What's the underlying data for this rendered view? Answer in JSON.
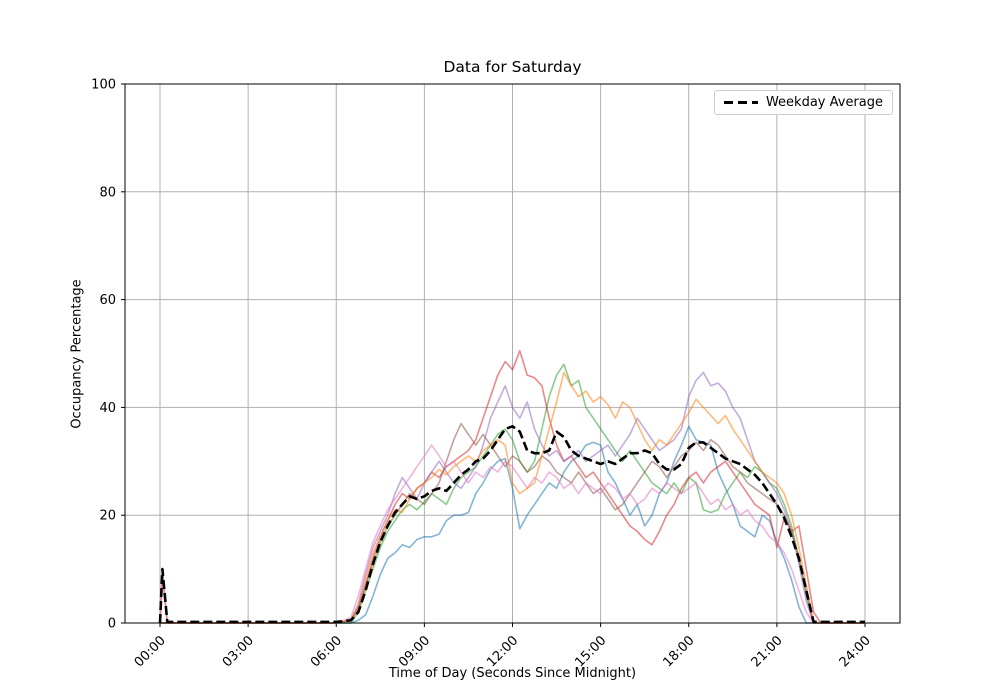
{
  "chart_data": {
    "type": "line",
    "title": "Data for Saturday",
    "xlabel": "Time of Day (Seconds Since Midnight)",
    "ylabel": "Occupancy Percentage",
    "ylim": [
      0,
      100
    ],
    "yticks": [
      0,
      20,
      40,
      60,
      80,
      100
    ],
    "xtick_hours": [
      0,
      3,
      6,
      9,
      12,
      15,
      18,
      21,
      24
    ],
    "xtick_labels": [
      "00:00",
      "03:00",
      "06:00",
      "09:00",
      "12:00",
      "15:00",
      "18:00",
      "21:00",
      "24:00"
    ],
    "grid": true,
    "legend": {
      "label": "Weekday Average",
      "position": "upper right"
    },
    "colors": {
      "grid": "#b0b0b0",
      "axis": "#000000",
      "average": "#000000"
    },
    "x_hours": [
      0,
      0.083,
      0.25,
      1,
      2,
      3,
      4,
      5,
      6,
      6.5,
      6.75,
      7,
      7.25,
      7.5,
      7.75,
      8,
      8.25,
      8.5,
      8.75,
      9,
      9.25,
      9.5,
      9.75,
      10,
      10.25,
      10.5,
      10.75,
      11,
      11.25,
      11.5,
      11.75,
      12,
      12.25,
      12.5,
      12.75,
      13,
      13.25,
      13.5,
      13.75,
      14,
      14.25,
      14.5,
      14.75,
      15,
      15.25,
      15.5,
      15.75,
      16,
      16.25,
      16.5,
      16.75,
      17,
      17.25,
      17.5,
      17.75,
      18,
      18.25,
      18.5,
      18.75,
      19,
      19.25,
      19.5,
      19.75,
      20,
      20.25,
      20.5,
      20.75,
      21,
      21.25,
      21.5,
      21.75,
      22,
      22.25,
      22.5,
      23,
      24
    ],
    "series": [
      {
        "name": "blue",
        "color": "#1f77b4",
        "opacity": 0.55,
        "values": [
          0,
          0,
          0,
          0,
          0,
          0,
          0,
          0,
          0,
          0,
          0.5,
          1.5,
          5,
          9,
          12,
          13,
          14.5,
          14,
          15.5,
          16,
          16,
          16.5,
          19,
          20,
          20,
          20.5,
          24,
          26,
          28.5,
          30,
          30.5,
          25,
          17.5,
          20,
          22,
          24,
          26,
          25,
          28,
          30,
          31,
          33,
          33.5,
          33,
          28,
          26,
          23,
          20,
          22,
          18,
          20,
          24,
          26,
          30,
          33,
          36.5,
          34,
          33.5,
          33,
          28,
          25,
          22,
          18,
          17,
          16,
          20,
          19,
          15,
          12,
          8,
          3,
          0,
          0,
          0,
          0,
          0
        ]
      },
      {
        "name": "green",
        "color": "#2ca02c",
        "opacity": 0.55,
        "values": [
          0,
          0,
          0,
          0,
          0,
          0,
          0,
          0,
          0,
          0,
          2,
          6,
          10,
          14,
          17,
          19,
          21,
          22,
          21,
          22.5,
          24,
          23,
          22,
          25,
          27,
          28,
          29,
          31,
          33,
          35,
          36,
          34,
          30,
          28,
          30,
          36,
          42,
          46,
          48,
          44,
          45,
          40,
          38,
          36,
          34,
          32,
          30,
          32,
          30,
          28,
          26,
          25,
          24,
          26,
          24,
          27,
          26,
          21,
          20.5,
          21,
          24,
          26,
          28,
          27,
          29,
          28,
          26,
          25,
          22,
          18,
          12,
          5,
          0,
          0,
          0,
          0
        ]
      },
      {
        "name": "red",
        "color": "#d62728",
        "opacity": 0.55,
        "values": [
          0,
          9.5,
          0,
          0,
          0,
          0,
          0,
          0,
          0,
          0.5,
          3,
          7,
          12,
          16,
          19,
          22,
          24,
          23,
          25,
          26,
          28,
          27,
          29,
          30,
          31,
          32,
          34,
          38,
          42,
          46,
          48.5,
          47,
          50.5,
          46,
          45.5,
          44,
          38,
          33,
          30,
          31,
          29,
          27,
          28,
          26,
          24,
          22,
          20,
          18,
          17,
          15.5,
          14.5,
          17,
          20,
          22,
          25,
          27,
          28,
          26,
          28,
          29,
          30,
          28,
          26,
          24,
          22,
          21,
          20,
          14,
          19.5,
          17,
          18,
          10,
          2,
          0,
          0,
          0
        ]
      },
      {
        "name": "purple",
        "color": "#9467bd",
        "opacity": 0.55,
        "values": [
          0,
          0,
          0,
          0,
          0,
          0,
          0,
          0,
          0,
          0.5,
          3.5,
          9,
          14,
          17,
          20,
          24,
          27,
          25,
          23,
          26,
          28,
          30,
          28,
          26,
          25,
          27,
          29,
          33,
          38,
          41,
          44,
          40,
          38,
          41,
          36,
          33,
          31,
          32,
          30,
          31,
          32,
          30,
          31,
          32,
          33,
          31,
          33,
          35,
          38,
          36,
          34,
          32,
          33,
          34,
          36,
          42,
          45,
          46.5,
          44,
          44.5,
          43,
          40,
          38,
          34,
          30,
          28,
          26,
          24,
          21,
          17,
          11,
          4,
          0,
          0,
          0,
          0
        ]
      },
      {
        "name": "brown",
        "color": "#8c564b",
        "opacity": 0.55,
        "values": [
          0,
          0,
          0,
          0,
          0,
          0,
          0,
          0,
          0,
          0.5,
          2.5,
          7,
          11,
          15,
          18,
          20,
          22,
          24,
          23,
          22,
          24,
          26,
          30,
          34,
          37,
          35,
          33,
          35,
          33,
          31,
          29,
          31,
          30,
          28,
          29,
          31,
          30,
          28,
          27,
          26,
          28,
          26,
          24,
          25,
          23,
          21,
          22,
          24,
          26,
          28,
          30,
          29,
          27,
          29,
          31,
          32,
          33.5,
          32,
          34,
          33,
          31,
          29,
          28,
          26,
          25,
          24,
          23,
          22,
          20,
          17,
          12,
          6,
          0,
          0,
          0,
          0
        ]
      },
      {
        "name": "pink",
        "color": "#e377c2",
        "opacity": 0.55,
        "values": [
          0,
          8.5,
          0,
          0,
          0,
          0,
          0,
          0,
          0,
          1,
          5,
          10,
          15,
          18,
          21,
          23,
          25,
          27,
          29,
          31,
          33,
          31,
          29,
          30,
          28,
          26,
          28,
          27,
          29,
          28,
          30,
          29,
          27,
          25,
          27,
          26,
          28,
          27,
          25,
          26,
          24,
          26,
          25,
          24,
          26,
          25,
          23,
          24,
          22,
          23,
          25,
          24,
          26,
          25,
          24,
          25,
          26,
          24,
          22,
          23,
          21,
          22,
          20,
          21,
          19,
          18,
          16,
          15,
          13,
          10,
          6,
          2,
          0,
          0,
          0,
          0
        ]
      },
      {
        "name": "orange",
        "color": "#ff7f0e",
        "opacity": 0.55,
        "values": [
          0,
          0,
          0,
          0,
          0,
          0,
          0,
          0,
          0,
          0.5,
          3,
          8,
          13,
          16,
          19,
          21,
          20.5,
          23,
          25,
          26,
          27,
          28.5,
          27.5,
          29,
          30,
          31,
          30,
          32,
          33,
          34,
          33,
          26,
          24,
          25,
          26,
          31,
          36,
          41,
          46.5,
          44,
          42,
          43,
          41,
          42,
          40.5,
          38,
          41,
          40,
          37,
          34,
          32,
          34,
          33,
          35,
          37,
          39,
          41.5,
          40,
          38.5,
          37,
          38.5,
          36,
          34,
          32,
          30,
          28,
          27,
          26,
          24,
          20,
          14,
          7,
          0,
          0,
          0,
          0
        ]
      }
    ],
    "average": {
      "name": "Weekday Average",
      "color": "#000000",
      "style": "dashed",
      "values": [
        0,
        10,
        0.2,
        0.2,
        0.2,
        0.2,
        0.2,
        0.2,
        0.2,
        0.5,
        2,
        6,
        11,
        15,
        18,
        20.5,
        22,
        23.5,
        23,
        23.5,
        24.5,
        25,
        24.5,
        26,
        27.5,
        28.5,
        30,
        30.5,
        32,
        34,
        36,
        36.5,
        35.5,
        32,
        31.5,
        31.5,
        32,
        35.5,
        34.5,
        32,
        31,
        30.5,
        30,
        29.5,
        30,
        29.5,
        30.5,
        31.5,
        31.5,
        32,
        31.5,
        29.5,
        28.5,
        28.5,
        29.5,
        32.5,
        33.5,
        33.5,
        32.5,
        31.5,
        30.5,
        30,
        29.5,
        28.5,
        27.5,
        26,
        24,
        22,
        19.5,
        16,
        12,
        6,
        0.2,
        0.2,
        0.2,
        0.2
      ]
    }
  }
}
